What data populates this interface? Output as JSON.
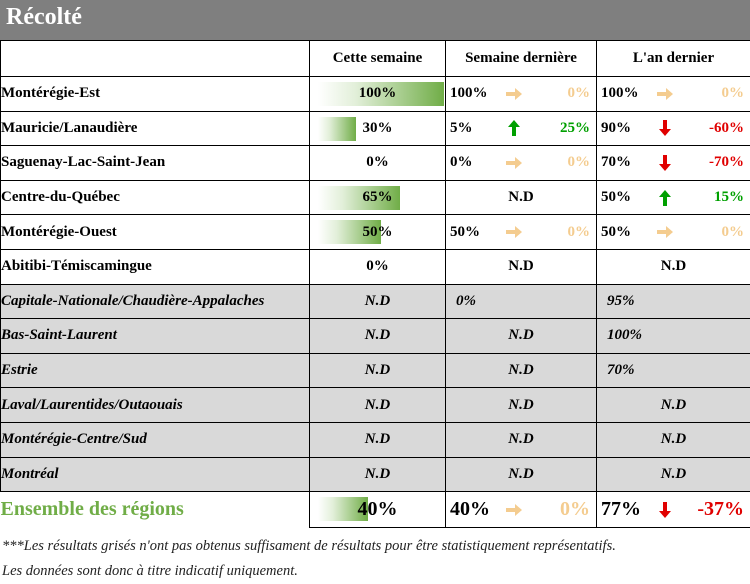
{
  "title": "Récolté",
  "columns": [
    "",
    "Cette semaine",
    "Semaine dernière",
    "L'an dernier"
  ],
  "rows": [
    {
      "region": "Montérégie-Est",
      "gray": false,
      "cur": "100%",
      "cur_frac": 1.0,
      "last": {
        "type": "cmp",
        "v": "100%",
        "trend": "neutral",
        "d": "0%"
      },
      "year": {
        "type": "cmp",
        "v": "100%",
        "trend": "neutral",
        "d": "0%"
      }
    },
    {
      "region": "Mauricie/Lanaudière",
      "gray": false,
      "cur": "30%",
      "cur_frac": 0.3,
      "last": {
        "type": "cmp",
        "v": "5%",
        "trend": "up",
        "d": "25%"
      },
      "year": {
        "type": "cmp",
        "v": "90%",
        "trend": "down",
        "d": "-60%"
      }
    },
    {
      "region": "Saguenay-Lac-Saint-Jean",
      "gray": false,
      "cur": "0%",
      "cur_frac": 0,
      "last": {
        "type": "cmp",
        "v": "0%",
        "trend": "neutral",
        "d": "0%"
      },
      "year": {
        "type": "cmp",
        "v": "70%",
        "trend": "down",
        "d": "-70%"
      }
    },
    {
      "region": "Centre-du-Québec",
      "gray": false,
      "cur": "65%",
      "cur_frac": 0.65,
      "last": {
        "type": "center",
        "v": "N.D"
      },
      "year": {
        "type": "cmp",
        "v": "50%",
        "trend": "up",
        "d": "15%"
      }
    },
    {
      "region": "Montérégie-Ouest",
      "gray": false,
      "cur": "50%",
      "cur_frac": 0.5,
      "last": {
        "type": "cmp",
        "v": "50%",
        "trend": "neutral",
        "d": "0%"
      },
      "year": {
        "type": "cmp",
        "v": "50%",
        "trend": "neutral",
        "d": "0%"
      }
    },
    {
      "region": "Abitibi-Témiscamingue",
      "gray": false,
      "cur": "0%",
      "cur_frac": 0,
      "last": {
        "type": "center",
        "v": "N.D"
      },
      "year": {
        "type": "center",
        "v": "N.D"
      }
    },
    {
      "region": "Capitale-Nationale/Chaudière-Appalaches",
      "gray": true,
      "cur": "N.D",
      "cur_frac": 0,
      "last": {
        "type": "left",
        "v": "0%"
      },
      "year": {
        "type": "left",
        "v": "95%"
      }
    },
    {
      "region": "Bas-Saint-Laurent",
      "gray": true,
      "cur": "N.D",
      "cur_frac": 0,
      "last": {
        "type": "center",
        "v": "N.D"
      },
      "year": {
        "type": "left",
        "v": "100%"
      }
    },
    {
      "region": "Estrie",
      "gray": true,
      "cur": "N.D",
      "cur_frac": 0,
      "last": {
        "type": "center",
        "v": "N.D"
      },
      "year": {
        "type": "left",
        "v": "70%"
      }
    },
    {
      "region": "Laval/Laurentides/Outaouais",
      "gray": true,
      "cur": "N.D",
      "cur_frac": 0,
      "last": {
        "type": "center",
        "v": "N.D"
      },
      "year": {
        "type": "center",
        "v": "N.D"
      }
    },
    {
      "region": "Montérégie-Centre/Sud",
      "gray": true,
      "cur": "N.D",
      "cur_frac": 0,
      "last": {
        "type": "center",
        "v": "N.D"
      },
      "year": {
        "type": "center",
        "v": "N.D"
      }
    },
    {
      "region": "Montréal",
      "gray": true,
      "cur": "N.D",
      "cur_frac": 0,
      "last": {
        "type": "center",
        "v": "N.D"
      },
      "year": {
        "type": "center",
        "v": "N.D"
      }
    }
  ],
  "total": {
    "region": "Ensemble des régions",
    "cur": "40%",
    "cur_frac": 0.4,
    "last": {
      "v": "40%",
      "trend": "neutral",
      "d": "0%"
    },
    "year": {
      "v": "77%",
      "trend": "down",
      "d": "-37%"
    }
  },
  "footnote1": "***Les résultats grisés n'ont pas obtenus suffisament de résultats pour être statistiquement représentatifs.",
  "footnote2": "Les données sont donc à titre indicatif uniquement.",
  "colors": {
    "header_bg": "#7f7f7f",
    "bar_green": "#70ad47",
    "neutral": "#f4cc8f",
    "up": "#00a000",
    "down": "#e00000",
    "gray_row": "#d9d9d9"
  }
}
